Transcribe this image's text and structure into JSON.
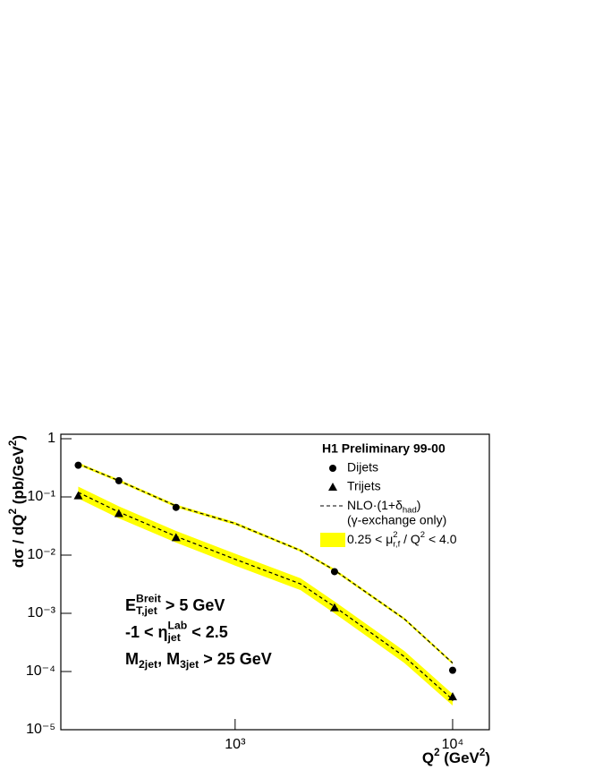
{
  "chart_data": {
    "type": "scatter",
    "xscale": "log",
    "yscale": "log",
    "xlim": [
      158,
      14750
    ],
    "ylim": [
      1e-05,
      1
    ],
    "xticks": [
      {
        "value": 1000,
        "label": "10³"
      },
      {
        "value": 10000,
        "label": "10⁴"
      }
    ],
    "yticks": [
      {
        "value": 1e-05,
        "label": "10⁻⁵"
      },
      {
        "value": 0.0001,
        "label": "10⁻⁴"
      },
      {
        "value": 0.001,
        "label": "10⁻³"
      },
      {
        "value": 0.01,
        "label": "10⁻²"
      },
      {
        "value": 0.1,
        "label": "10⁻¹"
      },
      1
    ],
    "xlabel": [
      {
        "text": "Q"
      },
      {
        "text": "2",
        "pos": "sup"
      },
      {
        "text": " (GeV"
      },
      {
        "text": "2",
        "pos": "sup"
      },
      {
        "text": ")"
      }
    ],
    "ylabel": [
      {
        "text": "dσ / dQ"
      },
      {
        "text": "2",
        "pos": "sup"
      },
      {
        "text": " (pb/GeV"
      },
      {
        "text": "2",
        "pos": "sup"
      },
      {
        "text": ")"
      }
    ],
    "legend_title": "H1 Preliminary 99-00",
    "legend_position": "upper right",
    "series": [
      {
        "name": "Dijets",
        "kind": "points",
        "marker": "circle",
        "color": "#000000",
        "x": [
          190,
          292,
          535,
          2864,
          10000
        ],
        "values": [
          0.35,
          0.19,
          0.066,
          0.0052,
          0.000105
        ]
      },
      {
        "name": "Trijets",
        "kind": "points",
        "marker": "triangle",
        "color": "#000000",
        "x": [
          190,
          292,
          535,
          2864,
          10000
        ],
        "values": [
          0.105,
          0.052,
          0.02,
          0.00125,
          3.7e-05
        ],
        "errors": [
          null,
          null,
          null,
          null,
          6e-06
        ]
      },
      {
        "name": [
          {
            "text": "NLO"
          },
          {
            "text": "·(1+δ"
          },
          {
            "text": "had",
            "pos": "sub"
          },
          {
            "text": ")"
          }
        ],
        "note": "(γ-exchange only)",
        "kind": "line",
        "dash": true,
        "color": "#000000",
        "x": [
          190,
          292,
          535,
          1000,
          2000,
          2864,
          6000,
          10000
        ],
        "values": [
          0.37,
          0.19,
          0.07,
          0.035,
          0.012,
          0.0055,
          0.0008,
          0.00014
        ]
      },
      {
        "kind": "line",
        "dash": true,
        "color": "#000000",
        "x": [
          190,
          292,
          535,
          1000,
          2000,
          2864,
          6000,
          10000
        ],
        "values": [
          0.12,
          0.055,
          0.021,
          0.0085,
          0.0032,
          0.0013,
          0.00018,
          3.3e-05
        ]
      },
      {
        "name": [
          {
            "text": "0.25 < μ"
          },
          {
            "text": "2",
            "pos": "sup"
          },
          {
            "text": "r,f",
            "pos": "sub",
            "stack": true
          },
          {
            "text": " / Q"
          },
          {
            "text": "2",
            "pos": "sup"
          },
          {
            "text": " < 4.0"
          }
        ],
        "kind": "band",
        "color": "#ffff00",
        "x": [
          190,
          292,
          535,
          1000,
          2000,
          2864,
          6000,
          10000
        ],
        "lower": [
          0.094,
          0.043,
          0.0164,
          0.0066,
          0.0025,
          0.001,
          0.00014,
          2.6e-05
        ],
        "upper": [
          0.15,
          0.069,
          0.026,
          0.0106,
          0.004,
          0.0016,
          0.000225,
          4.1e-05
        ]
      },
      {
        "kind": "band",
        "color": "#ffff00",
        "x": [
          190,
          292,
          535,
          1000,
          2000,
          2864,
          6000,
          10000
        ],
        "lower": [
          0.35,
          0.18,
          0.066,
          0.033,
          0.0114,
          0.0052,
          0.00076,
          0.000133
        ],
        "upper": [
          0.39,
          0.2,
          0.074,
          0.037,
          0.0126,
          0.0058,
          0.00084,
          0.000147
        ]
      }
    ],
    "annotations": [
      [
        {
          "text": "E"
        },
        {
          "text": "Breit",
          "pos": "sup"
        },
        {
          "text": "T,jet",
          "pos": "sub",
          "stack": true
        },
        {
          "text": " > 5 GeV"
        }
      ],
      [
        {
          "text": "-1 < η"
        },
        {
          "text": "Lab",
          "pos": "sup"
        },
        {
          "text": "jet",
          "pos": "sub",
          "stack": true
        },
        {
          "text": " < 2.5"
        }
      ],
      [
        {
          "text": "M"
        },
        {
          "text": "2jet",
          "pos": "sub"
        },
        {
          "text": ", M"
        },
        {
          "text": "3jet",
          "pos": "sub"
        },
        {
          "text": " > 25 GeV"
        }
      ]
    ]
  }
}
